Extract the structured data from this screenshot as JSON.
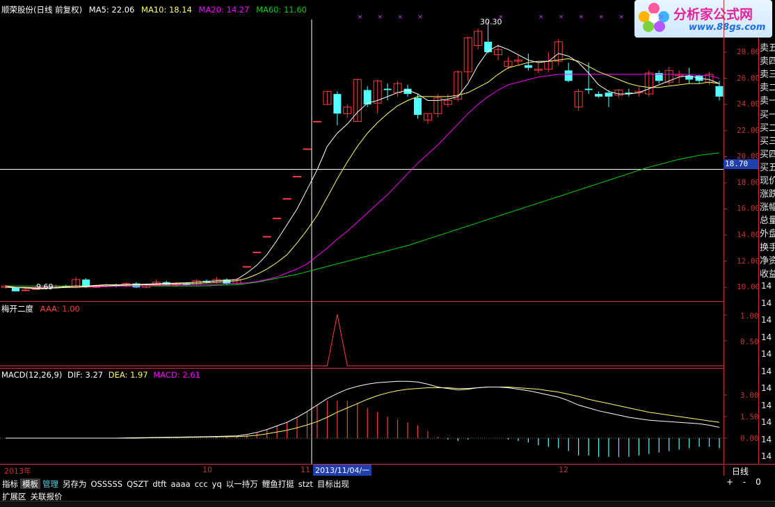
{
  "header": {
    "stock_title": "顺荣股份(日线 前复权)",
    "ma5": "MA5: 22.06",
    "ma10": "MA10: 18.14",
    "ma20": "MA20: 14.27",
    "ma60": "MA60: 11.60"
  },
  "logo": {
    "text_main": "分析家公式网",
    "text_url": "www.88gs.com"
  },
  "price_axis": [
    "28.00",
    "26.00",
    "24.00",
    "22.00",
    "20.00",
    "18.00",
    "16.00",
    "14.00",
    "12.00",
    "10.00"
  ],
  "crosshair_price": "18.70",
  "high_label": "30.30",
  "low_label": "9.69",
  "indicator1": {
    "title": "梅开二度",
    "value": "AAA: 1.00",
    "axis": [
      "1.00",
      "0.50"
    ]
  },
  "macd": {
    "title": "MACD(12,26,9)",
    "dif": "DIF: 3.27",
    "dea": "DEA: 1.97",
    "macd": "MACD: 2.61",
    "axis": [
      "3.00",
      "1.50",
      "0.00"
    ]
  },
  "side_panel": {
    "labels": [
      "卖五",
      "卖四",
      "卖三",
      "卖二",
      "卖一",
      "买一",
      "买二",
      "买三",
      "买四",
      "买五",
      "现价",
      "涨跌",
      "涨幅",
      "总量",
      "外盘",
      "换手",
      "净资",
      "收益"
    ],
    "values14": [
      "14",
      "14",
      "14",
      "14",
      "14",
      "14",
      "14",
      "14",
      "14",
      "14",
      "14"
    ]
  },
  "date_axis": {
    "year": "2013年",
    "m10": "10",
    "m11": "11",
    "current_date": "2013/11/04/一",
    "m12": "12"
  },
  "period": "日线",
  "zoom": {
    "plus": "+",
    "minus": "-",
    "zero": "0"
  },
  "toolbar": [
    "指标",
    "模板",
    "管理",
    "另存为",
    "OSSSSS",
    "QSZT",
    "dtft",
    "aaaa",
    "ccc",
    "yq",
    "以一持万",
    "鲤鱼打挺",
    "stzt",
    "目标出现"
  ],
  "bottom_tabs": [
    "扩展区",
    "关联报价"
  ],
  "colors": {
    "up": "#ff3c3c",
    "down": "#54ffff",
    "ma5": "#ffffff",
    "ma10": "#ffff64",
    "ma20": "#ff00ff",
    "ma60": "#00d200",
    "axis": "#c83232"
  },
  "chart_data": {
    "type": "candlestick",
    "price_range": [
      9.0,
      30.5
    ],
    "candles": [
      [
        10.1,
        10.2,
        10.0,
        9.9,
        0
      ],
      [
        10.0,
        10.0,
        9.7,
        9.69,
        1
      ],
      [
        9.8,
        10.0,
        9.8,
        9.75,
        0
      ],
      [
        9.9,
        10.1,
        9.9,
        9.8,
        0
      ],
      [
        10.0,
        10.1,
        10.0,
        9.95,
        0
      ],
      [
        10.0,
        10.2,
        10.1,
        9.95,
        0
      ],
      [
        10.1,
        10.2,
        10.0,
        9.95,
        1
      ],
      [
        10.0,
        10.8,
        10.6,
        9.95,
        0
      ],
      [
        10.6,
        10.7,
        10.0,
        9.95,
        1
      ],
      [
        10.0,
        10.2,
        10.1,
        9.95,
        0
      ],
      [
        10.1,
        10.3,
        10.2,
        10.0,
        0
      ],
      [
        10.2,
        10.3,
        10.1,
        10.0,
        1
      ],
      [
        10.1,
        10.4,
        10.3,
        10.0,
        0
      ],
      [
        10.3,
        10.4,
        10.0,
        9.95,
        1
      ],
      [
        10.0,
        10.3,
        10.2,
        9.95,
        0
      ],
      [
        10.2,
        10.6,
        10.4,
        10.1,
        0
      ],
      [
        10.4,
        10.5,
        10.2,
        10.1,
        1
      ],
      [
        10.2,
        10.4,
        10.3,
        10.1,
        0
      ],
      [
        10.3,
        10.4,
        10.2,
        10.1,
        1
      ],
      [
        10.2,
        10.6,
        10.5,
        10.1,
        0
      ],
      [
        10.5,
        10.6,
        10.4,
        10.3,
        1
      ],
      [
        10.4,
        10.8,
        10.6,
        10.3,
        0
      ],
      [
        10.6,
        10.7,
        10.3,
        10.2,
        1
      ],
      [
        10.3,
        10.7,
        10.6,
        10.2,
        0
      ],
      [
        11.6,
        11.6,
        11.6,
        11.6,
        0
      ],
      [
        12.7,
        12.7,
        12.7,
        12.7,
        0
      ],
      [
        13.9,
        13.9,
        13.9,
        13.9,
        0
      ],
      [
        15.3,
        15.3,
        15.3,
        15.3,
        0
      ],
      [
        16.8,
        16.8,
        16.8,
        16.8,
        0
      ],
      [
        18.5,
        18.5,
        18.5,
        18.5,
        0
      ],
      [
        20.6,
        20.6,
        20.6,
        20.6,
        0
      ],
      [
        22.7,
        22.7,
        22.7,
        22.7,
        0
      ],
      [
        24.0,
        25.0,
        25.0,
        24.0,
        0
      ],
      [
        24.8,
        25.0,
        23.3,
        22.4,
        1
      ],
      [
        23.3,
        24.0,
        23.8,
        23.0,
        0
      ],
      [
        22.7,
        26.0,
        25.9,
        22.7,
        0
      ],
      [
        25.1,
        25.4,
        24.0,
        23.8,
        1
      ],
      [
        24.1,
        25.9,
        25.8,
        23.3,
        0
      ],
      [
        25.1,
        25.6,
        25.2,
        24.3,
        1
      ],
      [
        24.9,
        25.8,
        25.6,
        24.6,
        0
      ],
      [
        25.2,
        25.5,
        24.8,
        24.6,
        1
      ],
      [
        24.5,
        24.8,
        23.2,
        22.9,
        1
      ],
      [
        22.8,
        23.3,
        23.3,
        22.5,
        0
      ],
      [
        23.3,
        24.8,
        24.5,
        23.0,
        0
      ],
      [
        24.0,
        24.8,
        24.3,
        23.8,
        0
      ],
      [
        24.4,
        26.6,
        26.5,
        24.2,
        0
      ],
      [
        26.5,
        29.2,
        29.1,
        25.8,
        0
      ],
      [
        28.5,
        29.8,
        29.6,
        28.2,
        0
      ],
      [
        28.8,
        30.3,
        28.0,
        27.9,
        1
      ],
      [
        27.8,
        28.6,
        28.2,
        27.4,
        0
      ],
      [
        27.3,
        27.6,
        26.9,
        26.7,
        0
      ],
      [
        27.3,
        27.8,
        27.4,
        27.0,
        0
      ],
      [
        26.8,
        27.9,
        27.0,
        26.6,
        1
      ],
      [
        26.6,
        27.2,
        26.7,
        26.4,
        0
      ],
      [
        26.7,
        28.0,
        27.3,
        26.5,
        0
      ],
      [
        27.3,
        29.0,
        28.8,
        27.0,
        0
      ],
      [
        26.6,
        27.2,
        25.8,
        25.7,
        1
      ],
      [
        23.8,
        25.2,
        25.0,
        23.5,
        0
      ],
      [
        25.2,
        27.2,
        25.1,
        24.8,
        1
      ],
      [
        24.8,
        25.0,
        24.6,
        24.5,
        1
      ],
      [
        24.6,
        25.1,
        24.9,
        23.8,
        1
      ],
      [
        24.7,
        25.2,
        25.1,
        24.5,
        0
      ],
      [
        24.9,
        25.2,
        24.8,
        24.6,
        1
      ],
      [
        24.9,
        25.3,
        25.0,
        24.6,
        0
      ],
      [
        24.8,
        26.6,
        26.4,
        24.6,
        0
      ],
      [
        26.4,
        26.6,
        25.8,
        25.6,
        1
      ],
      [
        25.7,
        26.9,
        26.6,
        25.5,
        0
      ],
      [
        26.2,
        26.6,
        26.3,
        25.6,
        0
      ],
      [
        26.2,
        26.8,
        25.9,
        25.6,
        1
      ],
      [
        26.2,
        26.3,
        25.8,
        25.6,
        1
      ],
      [
        25.7,
        26.5,
        26.3,
        25.5,
        0
      ],
      [
        25.4,
        25.8,
        24.6,
        24.3,
        1
      ]
    ],
    "ma5": [
      10.1,
      10.0,
      9.95,
      9.9,
      9.9,
      10.0,
      10.05,
      10.1,
      10.1,
      10.15,
      10.2,
      10.2,
      10.22,
      10.22,
      10.25,
      10.28,
      10.3,
      10.33,
      10.35,
      10.4,
      10.45,
      10.5,
      10.55,
      10.6,
      11.1,
      11.7,
      12.5,
      13.6,
      14.8,
      16.0,
      17.5,
      19.0,
      20.8,
      21.8,
      22.5,
      23.4,
      24.1,
      24.3,
      24.6,
      24.9,
      25.1,
      24.8,
      24.3,
      24.3,
      24.4,
      24.6,
      25.6,
      27.0,
      28.1,
      28.5,
      28.2,
      27.8,
      27.4,
      27.2,
      27.3,
      27.9,
      27.7,
      27.2,
      26.4,
      25.5,
      25.0,
      24.8,
      24.8,
      24.9,
      25.2,
      25.5,
      25.8,
      26.1,
      26.2,
      26.0,
      25.9,
      25.6
    ],
    "ma10": [
      10.0,
      10.0,
      10.0,
      9.95,
      9.95,
      9.95,
      10.0,
      10.0,
      10.05,
      10.1,
      10.12,
      10.15,
      10.17,
      10.2,
      10.2,
      10.22,
      10.24,
      10.26,
      10.28,
      10.3,
      10.35,
      10.4,
      10.45,
      10.5,
      10.7,
      11.0,
      11.4,
      11.9,
      12.5,
      13.4,
      14.4,
      15.5,
      16.9,
      18.3,
      19.6,
      20.8,
      21.8,
      22.6,
      23.3,
      23.9,
      24.3,
      24.6,
      24.6,
      24.6,
      24.6,
      24.7,
      24.9,
      25.3,
      25.7,
      26.3,
      26.8,
      27.0,
      27.2,
      27.3,
      27.3,
      27.4,
      27.5,
      27.3,
      26.9,
      26.5,
      26.2,
      25.9,
      25.6,
      25.4,
      25.3,
      25.3,
      25.4,
      25.5,
      25.6,
      25.6,
      25.7,
      25.6
    ],
    "ma20": [
      10.0,
      10.0,
      10.0,
      10.0,
      10.0,
      10.0,
      10.0,
      10.0,
      10.02,
      10.05,
      10.06,
      10.08,
      10.1,
      10.1,
      10.12,
      10.14,
      10.15,
      10.17,
      10.18,
      10.2,
      10.22,
      10.25,
      10.28,
      10.3,
      10.35,
      10.45,
      10.6,
      10.8,
      11.1,
      11.4,
      11.8,
      12.4,
      13.0,
      13.7,
      14.3,
      15.0,
      15.7,
      16.4,
      17.1,
      17.9,
      18.7,
      19.5,
      20.2,
      20.9,
      21.7,
      22.5,
      23.3,
      24.0,
      24.6,
      25.1,
      25.5,
      25.7,
      25.9,
      26.1,
      26.2,
      26.3,
      26.3,
      26.3,
      26.3,
      26.3,
      26.3,
      26.3,
      26.3,
      26.3,
      26.3,
      26.3,
      26.3,
      26.3,
      26.3,
      26.2,
      26.2,
      26.0
    ],
    "ma60": [
      10.1,
      10.1,
      10.1,
      10.1,
      10.1,
      10.1,
      10.1,
      10.1,
      10.1,
      10.1,
      10.1,
      10.1,
      10.1,
      10.1,
      10.1,
      10.1,
      10.1,
      10.1,
      10.1,
      10.1,
      10.12,
      10.15,
      10.18,
      10.2,
      10.3,
      10.4,
      10.55,
      10.7,
      10.85,
      11.0,
      11.2,
      11.4,
      11.6,
      11.8,
      12.0,
      12.2,
      12.4,
      12.6,
      12.8,
      13.0,
      13.2,
      13.45,
      13.7,
      13.95,
      14.2,
      14.45,
      14.7,
      14.95,
      15.2,
      15.45,
      15.7,
      15.95,
      16.2,
      16.45,
      16.7,
      16.95,
      17.2,
      17.45,
      17.7,
      17.95,
      18.2,
      18.45,
      18.7,
      18.95,
      19.2,
      19.4,
      19.6,
      19.8,
      19.95,
      20.1,
      20.2,
      20.3
    ],
    "aaa_signal_index": 33,
    "macd_dif": [
      0.0,
      0.0,
      0.0,
      0.0,
      0.0,
      0.0,
      0.0,
      0.0,
      0.0,
      0.0,
      0.0,
      0.0,
      0.02,
      0.03,
      0.04,
      0.05,
      0.06,
      0.07,
      0.08,
      0.09,
      0.1,
      0.12,
      0.14,
      0.16,
      0.25,
      0.4,
      0.6,
      0.85,
      1.1,
      1.45,
      1.85,
      2.3,
      2.75,
      3.1,
      3.4,
      3.6,
      3.75,
      3.85,
      3.9,
      3.95,
      3.95,
      3.9,
      3.75,
      3.55,
      3.45,
      3.35,
      3.4,
      3.5,
      3.55,
      3.55,
      3.5,
      3.4,
      3.3,
      3.15,
      3.0,
      2.85,
      2.6,
      2.3,
      2.1,
      1.9,
      1.75,
      1.6,
      1.45,
      1.35,
      1.25,
      1.2,
      1.15,
      1.1,
      1.05,
      1.0,
      0.9,
      0.75
    ],
    "macd_dea": [
      0.0,
      0.0,
      0.0,
      0.0,
      0.0,
      0.0,
      0.0,
      0.0,
      0.0,
      0.0,
      0.0,
      0.0,
      0.0,
      0.0,
      0.02,
      0.03,
      0.04,
      0.05,
      0.06,
      0.07,
      0.08,
      0.09,
      0.1,
      0.11,
      0.14,
      0.2,
      0.3,
      0.42,
      0.55,
      0.72,
      0.92,
      1.15,
      1.45,
      1.8,
      2.1,
      2.4,
      2.7,
      2.95,
      3.15,
      3.3,
      3.4,
      3.45,
      3.5,
      3.5,
      3.5,
      3.45,
      3.45,
      3.5,
      3.55,
      3.55,
      3.55,
      3.5,
      3.45,
      3.4,
      3.3,
      3.2,
      3.05,
      2.9,
      2.7,
      2.55,
      2.4,
      2.25,
      2.1,
      1.95,
      1.8,
      1.7,
      1.6,
      1.5,
      1.4,
      1.3,
      1.2,
      1.1
    ],
    "macd_hist": [
      0,
      0,
      0,
      0,
      0,
      0,
      0,
      0,
      0,
      0,
      0,
      0,
      0.04,
      0.06,
      0.04,
      0.04,
      0.04,
      0.04,
      0.04,
      0.04,
      0.04,
      0.06,
      0.08,
      0.1,
      0.22,
      0.4,
      0.6,
      0.86,
      1.1,
      1.46,
      1.86,
      2.3,
      2.6,
      2.6,
      2.6,
      2.4,
      2.1,
      1.8,
      1.5,
      1.3,
      1.1,
      0.9,
      0.5,
      0.1,
      -0.1,
      -0.2,
      -0.1,
      0.0,
      0.0,
      0.0,
      -0.1,
      -0.2,
      -0.3,
      -0.5,
      -0.6,
      -0.7,
      -0.9,
      -1.2,
      -1.2,
      -1.3,
      -1.3,
      -1.3,
      -1.3,
      -1.2,
      -1.1,
      -1.0,
      -0.9,
      -0.8,
      -0.7,
      -0.6,
      -0.6,
      -0.7
    ]
  }
}
